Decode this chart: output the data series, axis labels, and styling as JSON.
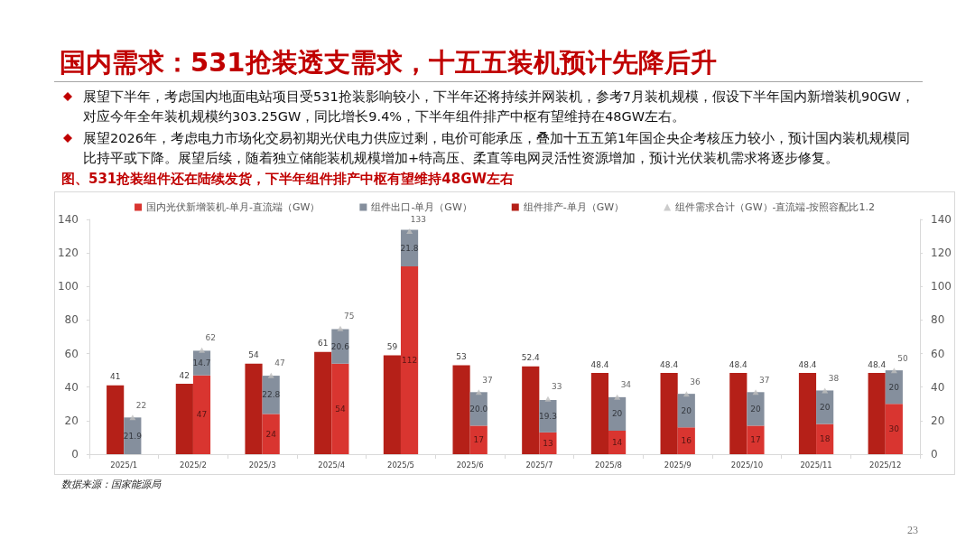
{
  "chart_data": {
    "type": "bar",
    "title": "国内需求：531抢装透支需求，十五五装机预计先降后升",
    "subtitle": "图、531抢装组件还在陆续发货，下半年组件排产中枢有望维持48GW左右",
    "annotations": [
      "展望下半年，考虑国内地面电站项目受531抢装影响较小，下半年还将持续并网装机，参考7月装机规模，假设下半年国内新增装机90GW，对应今年全年装机规模约303.25GW，同比增长9.4%，下半年组件排产中枢有望维持在48GW左右。",
      "展望2026年，考虑电力市场化交易初期光伏电力供应过剩，电价可能承压，叠加十五五第1年国企央企考核压力较小，预计国内装机规模同比持平或下降。展望后续，随着独立储能装机规模增加+特高压、柔直等电网灵活性资源增加，预计光伏装机需求将逐步修复。",
      "数据来源：国家能源局",
      "23"
    ],
    "categories": [
      "2025/1",
      "2025/2",
      "2025/3",
      "2025/4",
      "2025/5",
      "2025/6",
      "2025/7",
      "2025/8",
      "2025/9",
      "2025/10",
      "2025/11",
      "2025/12"
    ],
    "stacked": true,
    "legend": "top",
    "grid": false,
    "ylim": [
      0,
      140
    ],
    "yticks": [
      0,
      20,
      40,
      60,
      80,
      100,
      120,
      140
    ],
    "y2lim": [
      0,
      140
    ],
    "y2ticks": [
      0,
      20,
      40,
      60,
      80,
      100,
      120,
      140
    ],
    "series": [
      {
        "name": "国内光伏新增装机-单月-直流端（GW）",
        "color": "#d93530",
        "values": [
          null,
          47,
          24,
          54,
          112,
          17,
          13,
          14,
          16,
          17,
          18,
          30
        ],
        "value_labels": [
          null,
          "47",
          "24",
          "54",
          "112",
          "17",
          "13",
          "14",
          "16",
          "17",
          "18",
          "30"
        ]
      },
      {
        "name": "组件出口-单月（GW）",
        "color": "#858f9d",
        "values": [
          21.9,
          14.7,
          22.8,
          20.6,
          21.8,
          20.0,
          19.3,
          20,
          20,
          20,
          20,
          20
        ],
        "value_labels": [
          "21.9",
          "14.7",
          "22.8",
          "20.6",
          "21.8",
          "20.0",
          "19.3",
          "20",
          "20",
          "20",
          "20",
          "20"
        ]
      },
      {
        "name": "组件排产-单月（GW）",
        "color": "#b52018",
        "axis": "y2",
        "values": [
          41,
          42,
          54,
          61,
          59,
          53,
          52.4,
          48.4,
          48.4,
          48.4,
          48.4,
          48.4
        ],
        "value_labels": [
          "41",
          "42",
          "54",
          "61",
          "59",
          "53",
          "52.4",
          "48.4",
          "48.4",
          "48.4",
          "48.4",
          "48.4"
        ]
      },
      {
        "name": "组件需求合计（GW）-直流端-按照容配比1.2",
        "type": "scatter",
        "marker": "triangle",
        "color": "#bfbfbf",
        "x": [
          "2025/1",
          "2025/2",
          "2025/3",
          "2025/4",
          "2025/5",
          "2025/6",
          "2025/7",
          "2025/8",
          "2025/9",
          "2025/10",
          "2025/11",
          "2025/12"
        ],
        "values": [
          22,
          62,
          47,
          75,
          133,
          37,
          33,
          34,
          36,
          37,
          38,
          50
        ],
        "value_labels": [
          "22",
          "62",
          "47",
          "75",
          "133",
          "37",
          "33",
          "34",
          "36",
          "37",
          "38",
          "50"
        ]
      }
    ]
  }
}
